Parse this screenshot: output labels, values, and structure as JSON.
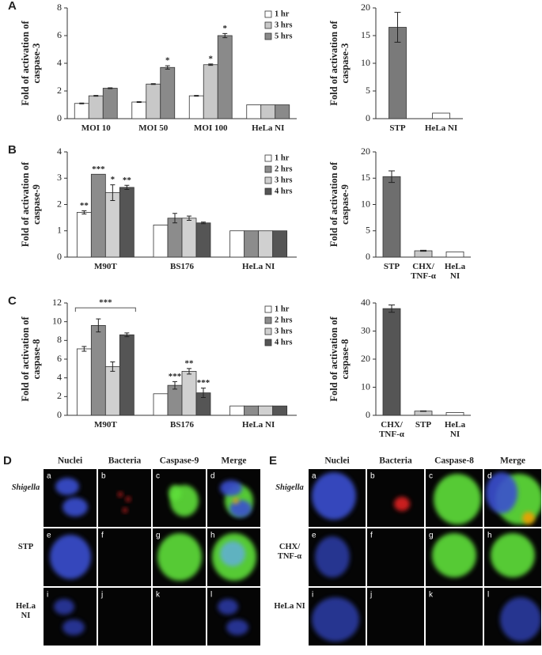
{
  "chart_data": [
    {
      "type": "bar",
      "panel": "A",
      "ylabel": [
        "Fold of activation of",
        "caspase-3"
      ],
      "categories": [
        "MOI 10",
        "MOI 50",
        "MOI 100",
        "HeLa NI"
      ],
      "series": [
        {
          "name": "1 hr",
          "color": "#ffffff",
          "values": [
            1.1,
            1.2,
            1.65,
            1
          ],
          "errors": [
            0.03,
            0.03,
            0.03,
            0
          ],
          "stars": [
            null,
            null,
            null,
            null
          ]
        },
        {
          "name": "3 hrs",
          "color": "#c8c8c8",
          "values": [
            1.65,
            2.5,
            3.9,
            1
          ],
          "errors": [
            0.03,
            0.03,
            0.05,
            0
          ],
          "stars": [
            null,
            null,
            "*",
            null
          ]
        },
        {
          "name": "5 hrs",
          "color": "#8a8a8a",
          "values": [
            2.2,
            3.7,
            6.0,
            1
          ],
          "errors": [
            0.03,
            0.12,
            0.15,
            0
          ],
          "stars": [
            null,
            "*",
            "*",
            null
          ]
        }
      ],
      "ylim": [
        0,
        8
      ],
      "yticks": [
        0,
        2,
        4,
        6,
        8
      ],
      "legend": "upper right"
    },
    {
      "type": "bar",
      "ylabel": [
        "Fold of activation of",
        "caspase-3"
      ],
      "categories": [
        "STP",
        "HeLa NI"
      ],
      "values": [
        16.5,
        1
      ],
      "errors": [
        2.7,
        0
      ],
      "colors": [
        "#7a7a7a",
        "#ffffff"
      ],
      "ylim": [
        0,
        20
      ],
      "yticks": [
        0,
        5,
        10,
        15,
        20
      ]
    },
    {
      "type": "bar",
      "panel": "B",
      "ylabel": [
        "Fold of activation of",
        "caspase-9"
      ],
      "categories": [
        "M90T",
        "BS176",
        "HeLa NI"
      ],
      "series": [
        {
          "name": "1 hr",
          "color": "#ffffff",
          "values": [
            1.7,
            1.22,
            1
          ],
          "errors": [
            0.06,
            0,
            0
          ],
          "stars": [
            "**",
            null,
            null
          ]
        },
        {
          "name": "2 hrs",
          "color": "#8c8c8c",
          "values": [
            3.15,
            1.48,
            1
          ],
          "errors": [
            0,
            0.18,
            0
          ],
          "stars": [
            "***",
            null,
            null
          ]
        },
        {
          "name": "3 hrs",
          "color": "#d0d0d0",
          "values": [
            2.45,
            1.48,
            1
          ],
          "errors": [
            0.3,
            0.08,
            0
          ],
          "stars": [
            "*",
            null,
            null
          ]
        },
        {
          "name": "4 hrs",
          "color": "#555555",
          "values": [
            2.65,
            1.3,
            1
          ],
          "errors": [
            0.08,
            0.03,
            0
          ],
          "stars": [
            "**",
            null,
            null
          ]
        }
      ],
      "ylim": [
        0,
        4
      ],
      "yticks": [
        0,
        1,
        2,
        3,
        4
      ],
      "legend": "upper right"
    },
    {
      "type": "bar",
      "ylabel": [
        "Fold of activation of",
        "caspase-9"
      ],
      "categories": [
        "STP",
        "CHX/ TNF-α",
        "HeLa NI"
      ],
      "values": [
        15.3,
        1.2,
        1
      ],
      "errors": [
        1.1,
        0.1,
        0
      ],
      "colors": [
        "#6e6e6e",
        "#c8c8c8",
        "#ffffff"
      ],
      "ylim": [
        0,
        20
      ],
      "yticks": [
        0,
        5,
        10,
        15,
        20
      ]
    },
    {
      "type": "bar",
      "panel": "C",
      "ylabel": [
        "Fold of activation of",
        "caspase-8"
      ],
      "categories": [
        "M90T",
        "BS176",
        "HeLa NI"
      ],
      "series": [
        {
          "name": "1 hr",
          "color": "#ffffff",
          "values": [
            7.1,
            2.3,
            1
          ],
          "errors": [
            0.25,
            0,
            0
          ],
          "stars": [
            null,
            null,
            null
          ]
        },
        {
          "name": "2 hrs",
          "color": "#8c8c8c",
          "values": [
            9.6,
            3.2,
            1
          ],
          "errors": [
            0.7,
            0.4,
            0
          ],
          "stars": [
            null,
            "***",
            null
          ]
        },
        {
          "name": "3 hrs",
          "color": "#d0d0d0",
          "values": [
            5.2,
            4.7,
            1
          ],
          "errors": [
            0.5,
            0.3,
            0
          ],
          "stars": [
            null,
            "**",
            null
          ]
        },
        {
          "name": "4 hrs",
          "color": "#555555",
          "values": [
            8.6,
            2.4,
            1
          ],
          "errors": [
            0.2,
            0.5,
            0
          ],
          "stars": [
            null,
            "***",
            null
          ]
        }
      ],
      "bracket_label": "***",
      "ylim": [
        0,
        12
      ],
      "yticks": [
        0,
        2,
        4,
        6,
        8,
        10,
        12
      ],
      "legend": "upper right"
    },
    {
      "type": "bar",
      "ylabel": [
        "Fold of activation of",
        "caspase-8"
      ],
      "categories": [
        "CHX/ TNF-α",
        "STP",
        "HeLa NI"
      ],
      "values": [
        38,
        1.5,
        1
      ],
      "errors": [
        1.3,
        0.1,
        0
      ],
      "colors": [
        "#555555",
        "#c8c8c8",
        "#ffffff"
      ],
      "ylim": [
        0,
        40
      ],
      "yticks": [
        0,
        10,
        20,
        30,
        40
      ]
    }
  ],
  "panels": [
    {
      "label": "D",
      "columns": [
        "Nuclei",
        "Bacteria",
        "Caspase-9",
        "Merge"
      ],
      "rows": [
        "Shigella",
        "STP",
        "HeLa NI"
      ],
      "letters": [
        "a",
        "b",
        "c",
        "d",
        "e",
        "f",
        "g",
        "h",
        "i",
        "j",
        "k",
        "l"
      ]
    },
    {
      "label": "E",
      "columns": [
        "Nuclei",
        "Bacteria",
        "Caspase-8",
        "Merge"
      ],
      "rows": [
        "Shigella",
        "CHX/ TNF-α",
        "HeLa NI"
      ],
      "letters": [
        "a",
        "b",
        "c",
        "d",
        "e",
        "f",
        "g",
        "h",
        "i",
        "j",
        "k",
        "l"
      ]
    }
  ]
}
